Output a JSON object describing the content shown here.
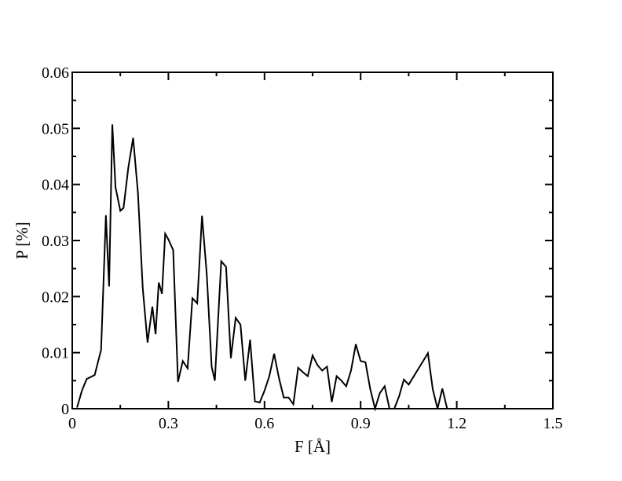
{
  "chart_data": {
    "type": "line",
    "xlabel": "F [Å]",
    "ylabel": "P [%]",
    "xlim": [
      0,
      1.5
    ],
    "ylim": [
      0,
      0.06
    ],
    "x_ticks": [
      0,
      0.3,
      0.6,
      0.9,
      1.2,
      1.5
    ],
    "x_tick_labels": [
      "0",
      "0.3",
      "0.6",
      "0.9",
      "1.2",
      "1.5"
    ],
    "y_ticks": [
      0,
      0.01,
      0.02,
      0.03,
      0.04,
      0.05,
      0.06
    ],
    "y_tick_labels": [
      "0",
      "0.01",
      "0.02",
      "0.03",
      "0.04",
      "0.05",
      "0.06"
    ],
    "grid": false,
    "legend": "none",
    "line_color": "#000000",
    "series": [
      {
        "x": [
          0.015,
          0.03,
          0.045,
          0.07,
          0.09,
          0.105,
          0.115,
          0.125,
          0.135,
          0.15,
          0.16,
          0.175,
          0.19,
          0.205,
          0.22,
          0.235,
          0.25,
          0.26,
          0.27,
          0.28,
          0.29,
          0.3,
          0.315,
          0.33,
          0.345,
          0.36,
          0.375,
          0.39,
          0.405,
          0.42,
          0.435,
          0.445,
          0.465,
          0.48,
          0.495,
          0.51,
          0.525,
          0.54,
          0.555,
          0.57,
          0.585,
          0.6,
          0.615,
          0.63,
          0.645,
          0.66,
          0.675,
          0.69,
          0.705,
          0.72,
          0.735,
          0.75,
          0.765,
          0.78,
          0.795,
          0.81,
          0.825,
          0.84,
          0.855,
          0.87,
          0.885,
          0.9,
          0.915,
          0.93,
          0.945,
          0.96,
          0.975,
          0.99,
          1.005,
          1.02,
          1.035,
          1.05,
          1.11,
          1.125,
          1.14,
          1.155,
          1.17,
          1.185,
          1.2,
          1.215,
          1.23
        ],
        "values": [
          0.0002,
          0.0032,
          0.0053,
          0.006,
          0.0105,
          0.0345,
          0.0218,
          0.0507,
          0.0395,
          0.0353,
          0.0358,
          0.043,
          0.0483,
          0.0385,
          0.0215,
          0.0118,
          0.0182,
          0.0133,
          0.0225,
          0.0205,
          0.0312,
          0.0302,
          0.0283,
          0.0048,
          0.0085,
          0.0072,
          0.0197,
          0.0188,
          0.0344,
          0.0238,
          0.0075,
          0.005,
          0.0263,
          0.0253,
          0.009,
          0.0162,
          0.015,
          0.005,
          0.0123,
          0.0013,
          0.0011,
          0.0032,
          0.0058,
          0.0098,
          0.0055,
          0.002,
          0.002,
          0.0008,
          0.0073,
          0.0065,
          0.0058,
          0.0095,
          0.0078,
          0.0068,
          0.0075,
          0.0012,
          0.0058,
          0.005,
          0.004,
          0.0068,
          0.0115,
          0.0085,
          0.0083,
          0.0035,
          0.0,
          0.0028,
          0.004,
          0.0,
          0.0,
          0.0022,
          0.0052,
          0.0043,
          0.0099,
          0.0035,
          0.0,
          0.0036,
          0.0,
          0.0,
          0.0,
          0.0,
          0.0
        ]
      }
    ]
  }
}
